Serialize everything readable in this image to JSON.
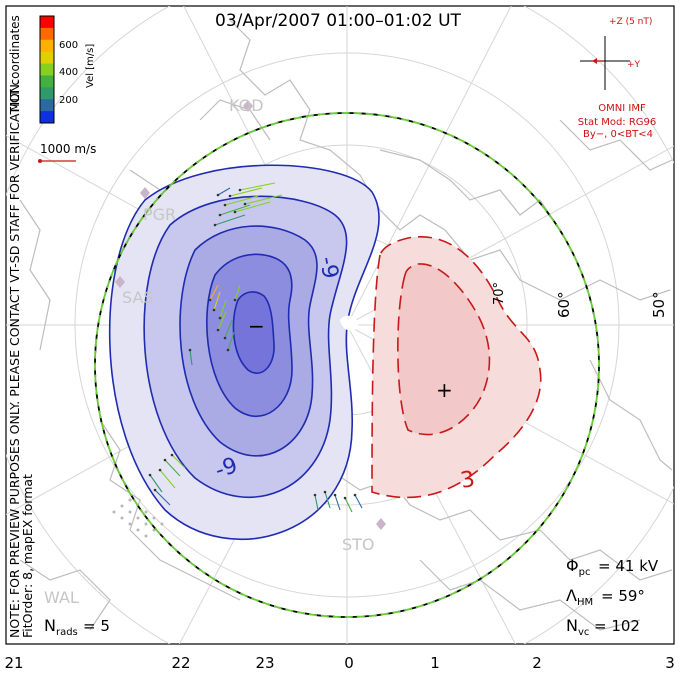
{
  "title": "03/Apr/2007 01:00–01:02 UT",
  "vertical_note": "NOTE: FOR PREVIEW PURPOSES ONLY. PLEASE CONTACT VT-SD STAFF FOR VERIFICATION.",
  "fit_order": "FitOrder: 8,  mapEX format",
  "coords_label": "MLT coordinates",
  "colorbar": {
    "label": "Vel [m/s]",
    "ticks": [
      "600",
      "400",
      "200"
    ],
    "colors": [
      "#ff0000",
      "#ff6a00",
      "#ffb000",
      "#e0d000",
      "#88d020",
      "#44b040",
      "#2f9a6a",
      "#2a6aa0",
      "#1030e0"
    ]
  },
  "velocity_scale": "1000 m/s",
  "imf": {
    "bz_label": "+Z (5 nT)",
    "by_label": "+Y",
    "source": "OMNI IMF",
    "stat_mod": "Stat Mod: RG96",
    "condition": "By−, 0<BT<4"
  },
  "latitude_labels": [
    "60°",
    "50°",
    "70°"
  ],
  "stations": [
    "KOD",
    "PGR",
    "SAS",
    "STO",
    "WAL"
  ],
  "contour_labels": [
    "-9",
    "-9",
    "3"
  ],
  "markers": {
    "min": "−",
    "max": "+"
  },
  "stats": {
    "phi_pc": "= 41 kV",
    "lambda_hm": "= 59°",
    "n_vc": "= 102",
    "n_rads": "= 5"
  },
  "mlt_ticks": [
    "21",
    "22",
    "23",
    "0",
    "1",
    "2",
    "3"
  ]
}
